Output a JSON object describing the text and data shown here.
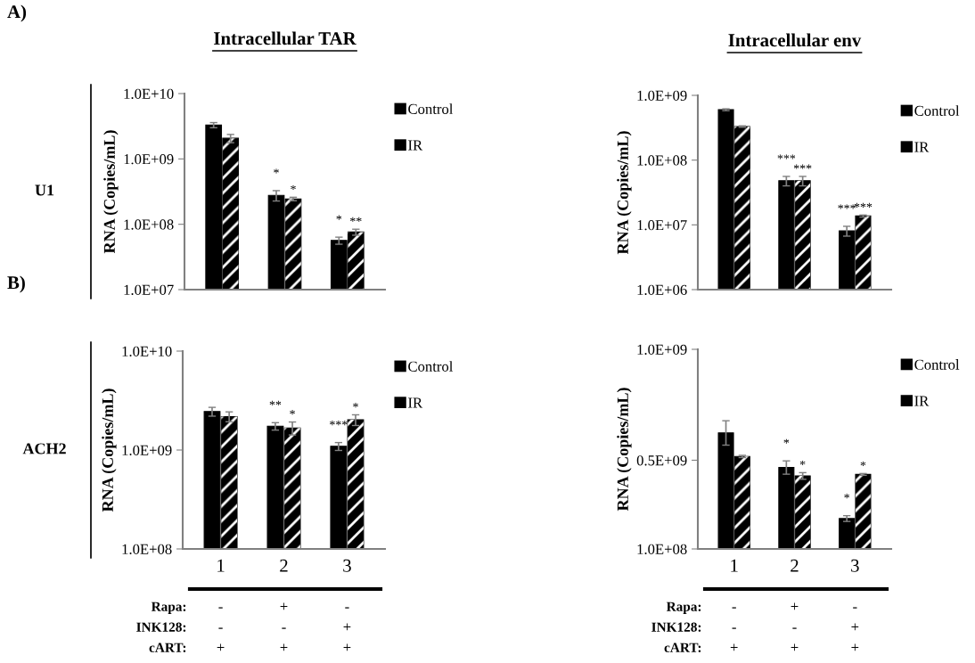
{
  "chart_data": [
    {
      "type": "bar",
      "title": "Intracellular TAR",
      "ylabel": "RNA (Copies/mL)",
      "log": "y",
      "categories": [
        null,
        null,
        null
      ],
      "tick_labels": "y",
      "legend": "top right",
      "grid": false,
      "ylim": [
        10000000,
        10000000000
      ],
      "yticks": [
        {
          "value": 10000000,
          "label": "1.0E+07"
        },
        {
          "value": 100000000,
          "label": "1.0E+08"
        },
        {
          "value": 1000000000,
          "label": "1.0E+09"
        },
        {
          "value": 10000000000,
          "label": "1.0E+10"
        }
      ],
      "series": [
        {
          "name": "Control",
          "color": "#000000",
          "values": [
            3300000000,
            277000000,
            56500000
          ],
          "errors": [
            300000000,
            50000000,
            7000000
          ],
          "value_labels": [
            null,
            "*",
            "*"
          ]
        },
        {
          "name": "IR",
          "color": "#000000",
          "values": [
            2070000000,
            244000000,
            76000000
          ],
          "errors": [
            300000000,
            15000000,
            8000000
          ],
          "value_labels": [
            null,
            "*",
            "**"
          ]
        }
      ],
      "annotations": [
        "A)",
        "U1"
      ]
    },
    {
      "type": "bar",
      "title": "Intracellular env",
      "ylabel": "RNA (Copies/mL)",
      "log": "y",
      "categories": [
        null,
        null,
        null
      ],
      "tick_labels": "y",
      "legend": "top right",
      "grid": false,
      "ylim": [
        1000000,
        1000000000
      ],
      "yticks": [
        {
          "value": 1000000,
          "label": "1.0E+06"
        },
        {
          "value": 10000000,
          "label": "1.0E+07"
        },
        {
          "value": 100000000,
          "label": "1.0E+08"
        },
        {
          "value": 1000000000,
          "label": "1.0E+09"
        }
      ],
      "series": [
        {
          "name": "Control",
          "color": "#000000",
          "values": [
            600000000,
            48000000,
            8100000
          ],
          "errors": [
            20000000,
            8000000,
            1400000
          ],
          "value_labels": [
            null,
            "***",
            "***"
          ]
        },
        {
          "name": "IR",
          "color": "#000000",
          "values": [
            330000000,
            48000000,
            13700000
          ],
          "errors": [
            8000000,
            8000000,
            500000
          ],
          "value_labels": [
            null,
            "***",
            "***"
          ]
        }
      ]
    },
    {
      "type": "bar",
      "ylabel": "RNA (Copies/mL)",
      "log": "y",
      "categories": [
        "1",
        "2",
        "3"
      ],
      "legend": "top right",
      "grid": false,
      "ylim": [
        100000000,
        10000000000
      ],
      "yticks": [
        {
          "value": 100000000,
          "label": "1.0E+08"
        },
        {
          "value": 1000000000,
          "label": "1.0E+09"
        },
        {
          "value": 10000000000,
          "label": "1.0E+10"
        }
      ],
      "series": [
        {
          "name": "Control",
          "color": "#000000",
          "values": [
            2450000000,
            1740000000,
            1090000000
          ],
          "errors": [
            250000000,
            150000000,
            100000000
          ],
          "value_labels": [
            null,
            "**",
            "***"
          ]
        },
        {
          "name": "IR",
          "color": "#000000",
          "values": [
            2180000000,
            1670000000,
            2020000000
          ],
          "errors": [
            250000000,
            250000000,
            250000000
          ],
          "value_labels": [
            null,
            "*",
            "*"
          ]
        }
      ],
      "annotations": [
        "B)",
        "ACH2",
        "Rapa:",
        "-",
        "+",
        "-",
        "INK128:",
        "-",
        "-",
        "+",
        "cART:",
        "+",
        "+",
        "+"
      ]
    },
    {
      "type": "bar",
      "ylabel": "RNA (Copies/mL)",
      "categories": [
        "1",
        "2",
        "3"
      ],
      "legend": "top right",
      "grid": false,
      "ylim": [
        100000000,
        1000000000
      ],
      "yticks": [
        {
          "value": 100000000,
          "label": "1.0E+08"
        },
        {
          "value": 500000000,
          "label": "0.5E+09"
        },
        {
          "value": 1000000000,
          "label": "1.0E+09"
        }
      ],
      "series": [
        {
          "name": "Control",
          "color": "#000000",
          "values": [
            623000000,
            467000000,
            237000000
          ],
          "errors": [
            55000000,
            30000000,
            13000000
          ],
          "value_labels": [
            null,
            "*",
            "*"
          ]
        },
        {
          "name": "IR",
          "color": "#000000",
          "values": [
            517000000,
            429000000,
            436000000
          ],
          "errors": [
            5000000,
            15000000,
            4000000
          ],
          "value_labels": [
            null,
            "*",
            "*"
          ]
        }
      ],
      "annotations": [
        "Rapa:",
        "-",
        "+",
        "-",
        "INK128:",
        "-",
        "-",
        "+",
        "cART:",
        "+",
        "+",
        "+"
      ]
    }
  ]
}
